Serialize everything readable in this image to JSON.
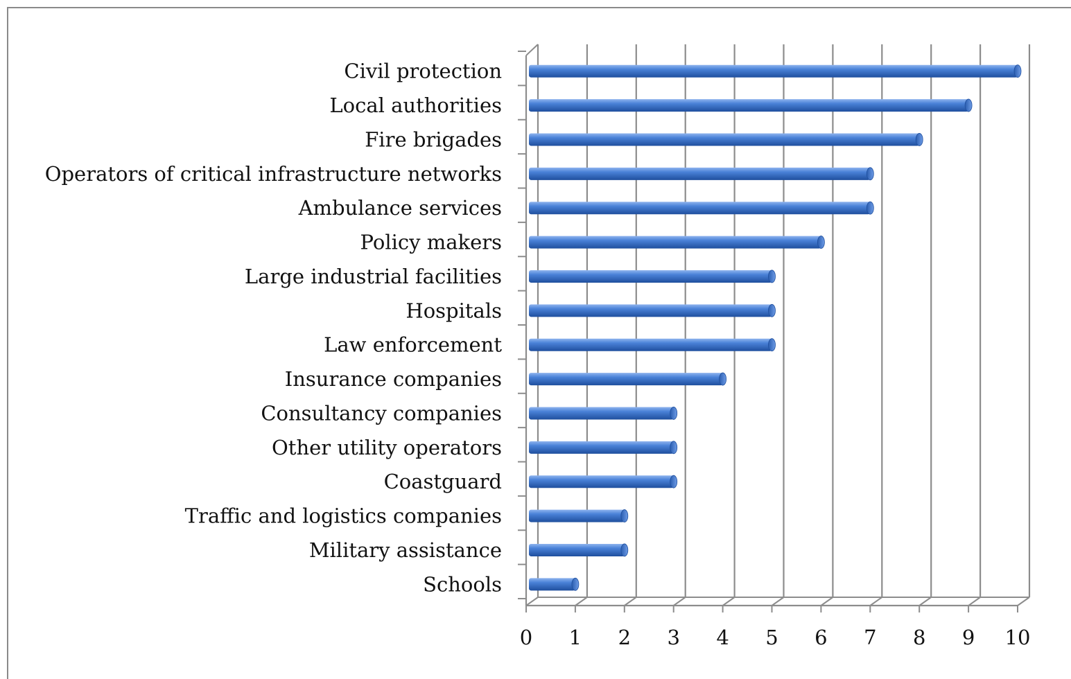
{
  "chart_data": {
    "type": "bar",
    "orientation": "horizontal",
    "style": "3d-cylinder",
    "categories": [
      "Civil protection",
      "Local authorities",
      "Fire brigades",
      "Operators of critical infrastructure networks",
      "Ambulance services",
      "Policy makers",
      "Large industrial facilities",
      "Hospitals",
      "Law enforcement",
      "Insurance companies",
      "Consultancy companies",
      "Other utility operators",
      "Coastguard",
      "Traffic and logistics companies",
      "Military assistance",
      "Schools"
    ],
    "values": [
      10,
      9,
      8,
      7,
      7,
      6,
      5,
      5,
      5,
      4,
      3,
      3,
      3,
      2,
      2,
      1
    ],
    "xlim": [
      0,
      10
    ],
    "xticks": [
      "0",
      "1",
      "2",
      "3",
      "4",
      "5",
      "6",
      "7",
      "8",
      "9",
      "10"
    ],
    "grid": "vertical",
    "legend": "none",
    "bar_color": "#3f78d0"
  }
}
